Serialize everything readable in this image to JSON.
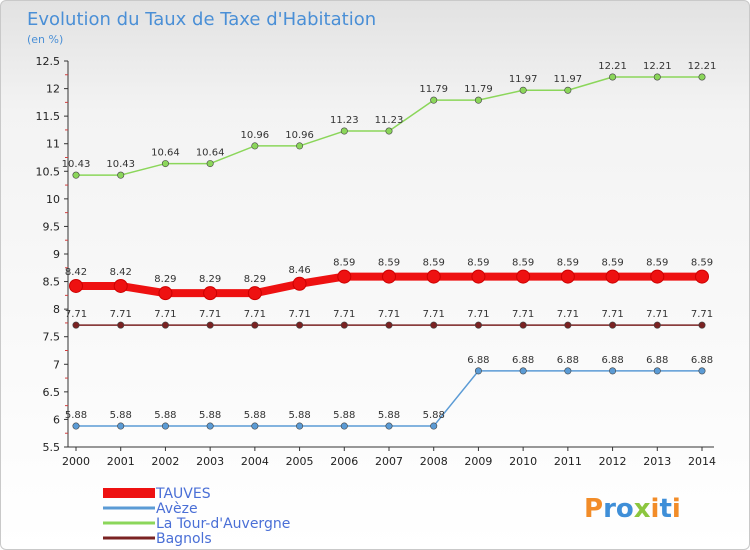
{
  "title": "Evolution du Taux de Taxe d'Habitation",
  "subtitle": "(en %)",
  "logo": {
    "text": "Proxiti"
  },
  "chart_data": {
    "type": "line",
    "x": [
      "2000",
      "2001",
      "2002",
      "2003",
      "2004",
      "2005",
      "2006",
      "2007",
      "2008",
      "2009",
      "2010",
      "2011",
      "2012",
      "2013",
      "2014"
    ],
    "ylim": [
      5.5,
      12.5
    ],
    "yticks": [
      "5.5",
      "6",
      "6.5",
      "7",
      "7.5",
      "8",
      "8.5",
      "9",
      "9.5",
      "10",
      "10.5",
      "11",
      "11.5",
      "12",
      "12.5"
    ],
    "grid": false,
    "legend_position": "bottom-left",
    "series": [
      {
        "name": "La Tour-d'Auvergne",
        "color": "#8bd65a",
        "values": [
          10.43,
          10.43,
          10.64,
          10.64,
          10.96,
          10.96,
          11.23,
          11.23,
          11.79,
          11.79,
          11.97,
          11.97,
          12.21,
          12.21,
          12.21
        ],
        "labels": [
          "10.43",
          "10.43",
          "10.64",
          "10.64",
          "10.96",
          "10.96",
          "11.23",
          "11.23",
          "11.79",
          "11.79",
          "11.97",
          "11.97",
          "12.21",
          "12.21",
          "12.21"
        ]
      },
      {
        "name": "TAUVES",
        "color": "#ee1111",
        "values": [
          8.42,
          8.42,
          8.29,
          8.29,
          8.29,
          8.46,
          8.59,
          8.59,
          8.59,
          8.59,
          8.59,
          8.59,
          8.59,
          8.59,
          8.59
        ],
        "labels": [
          "8.42",
          "8.42",
          "8.29",
          "8.29",
          "8.29",
          "8.46",
          "8.59",
          "8.59",
          "8.59",
          "8.59",
          "8.59",
          "8.59",
          "8.59",
          "8.59",
          "8.59"
        ]
      },
      {
        "name": "Bagnols",
        "color": "#7a2222",
        "values": [
          7.71,
          7.71,
          7.71,
          7.71,
          7.71,
          7.71,
          7.71,
          7.71,
          7.71,
          7.71,
          7.71,
          7.71,
          7.71,
          7.71,
          7.71
        ],
        "labels": [
          "7.71",
          "7.71",
          "7.71",
          "7.71",
          "7.71",
          "7.71",
          "7.71",
          "7.71",
          "7.71",
          "7.71",
          "7.71",
          "7.71",
          "7.71",
          "7.71",
          "7.71"
        ]
      },
      {
        "name": "Avèze",
        "color": "#5b9bd5",
        "values": [
          5.88,
          5.88,
          5.88,
          5.88,
          5.88,
          5.88,
          5.88,
          5.88,
          5.88,
          6.88,
          6.88,
          6.88,
          6.88,
          6.88,
          6.88
        ],
        "labels": [
          "5.88",
          "5.88",
          "5.88",
          "5.88",
          "5.88",
          "5.88",
          "5.88",
          "5.88",
          "5.88",
          "6.88",
          "6.88",
          "6.88",
          "6.88",
          "6.88",
          "6.88"
        ]
      }
    ],
    "legend": [
      "TAUVES",
      "Avèze",
      "La Tour-d'Auvergne",
      "Bagnols"
    ]
  }
}
